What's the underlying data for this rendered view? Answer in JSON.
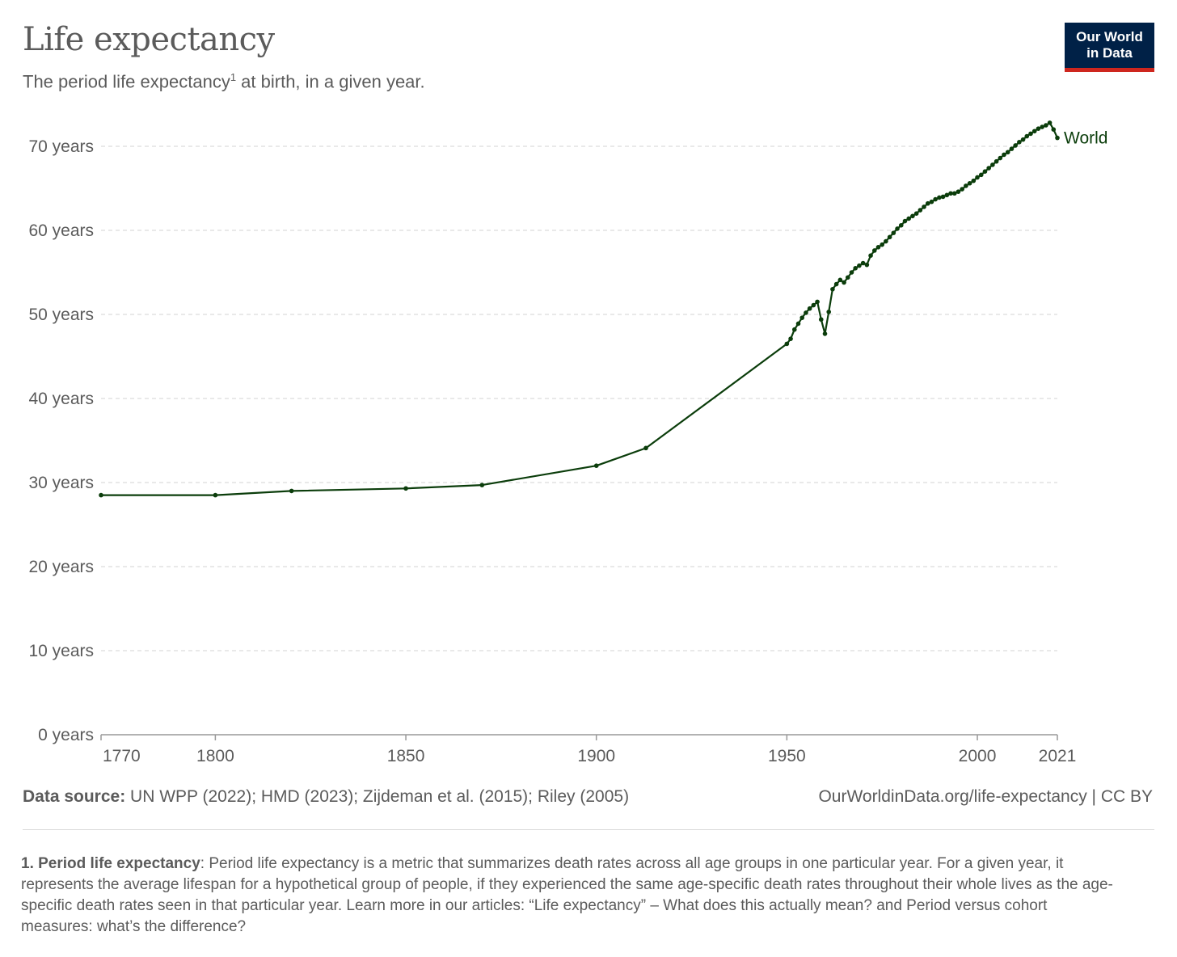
{
  "header": {
    "title": "Life expectancy",
    "subtitle": "The period life expectancy",
    "subtitle_sup": "1",
    "subtitle_rest": " at birth, in a given year."
  },
  "logo": {
    "line1": "Our World",
    "line2": "in Data",
    "bg_color": "#002147",
    "accent_color": "#ce261e"
  },
  "chart_data": {
    "type": "line",
    "title": "Life expectancy",
    "subtitle": "The period life expectancy¹ at birth, in a given year.",
    "xlim": [
      1770,
      2021
    ],
    "ylim": [
      0,
      75
    ],
    "x_ticks": [
      1770,
      1800,
      1850,
      1900,
      1950,
      2000,
      2021
    ],
    "y_ticks": [
      0,
      10,
      20,
      30,
      40,
      50,
      60,
      70
    ],
    "y_tick_labels": [
      "0 years",
      "10 years",
      "20 years",
      "30 years",
      "40 years",
      "50 years",
      "60 years",
      "70 years"
    ],
    "grid": "horizontal dashed",
    "series": [
      {
        "name": "World",
        "color": "#0b3d0b",
        "points": [
          [
            1770,
            28.5
          ],
          [
            1800,
            28.5
          ],
          [
            1820,
            29.0
          ],
          [
            1850,
            29.3
          ],
          [
            1870,
            29.7
          ],
          [
            1900,
            32.0
          ],
          [
            1913,
            34.1
          ],
          [
            1950,
            46.5
          ],
          [
            1951,
            47.1
          ],
          [
            1952,
            48.2
          ],
          [
            1953,
            48.9
          ],
          [
            1954,
            49.6
          ],
          [
            1955,
            50.2
          ],
          [
            1956,
            50.7
          ],
          [
            1957,
            51.1
          ],
          [
            1958,
            51.5
          ],
          [
            1959,
            49.4
          ],
          [
            1960,
            47.7
          ],
          [
            1961,
            50.3
          ],
          [
            1962,
            53.0
          ],
          [
            1963,
            53.6
          ],
          [
            1964,
            54.1
          ],
          [
            1965,
            53.8
          ],
          [
            1966,
            54.4
          ],
          [
            1967,
            55.0
          ],
          [
            1968,
            55.5
          ],
          [
            1969,
            55.8
          ],
          [
            1970,
            56.1
          ],
          [
            1971,
            55.9
          ],
          [
            1972,
            57.0
          ],
          [
            1973,
            57.6
          ],
          [
            1974,
            58.0
          ],
          [
            1975,
            58.3
          ],
          [
            1976,
            58.7
          ],
          [
            1977,
            59.2
          ],
          [
            1978,
            59.7
          ],
          [
            1979,
            60.2
          ],
          [
            1980,
            60.6
          ],
          [
            1981,
            61.1
          ],
          [
            1982,
            61.4
          ],
          [
            1983,
            61.7
          ],
          [
            1984,
            62.0
          ],
          [
            1985,
            62.4
          ],
          [
            1986,
            62.8
          ],
          [
            1987,
            63.2
          ],
          [
            1988,
            63.4
          ],
          [
            1989,
            63.7
          ],
          [
            1990,
            63.9
          ],
          [
            1991,
            64.0
          ],
          [
            1992,
            64.2
          ],
          [
            1993,
            64.4
          ],
          [
            1994,
            64.4
          ],
          [
            1995,
            64.6
          ],
          [
            1996,
            64.9
          ],
          [
            1997,
            65.3
          ],
          [
            1998,
            65.6
          ],
          [
            1999,
            65.9
          ],
          [
            2000,
            66.3
          ],
          [
            2001,
            66.6
          ],
          [
            2002,
            67.0
          ],
          [
            2003,
            67.4
          ],
          [
            2004,
            67.8
          ],
          [
            2005,
            68.2
          ],
          [
            2006,
            68.6
          ],
          [
            2007,
            69.0
          ],
          [
            2008,
            69.3
          ],
          [
            2009,
            69.7
          ],
          [
            2010,
            70.1
          ],
          [
            2011,
            70.5
          ],
          [
            2012,
            70.8
          ],
          [
            2013,
            71.2
          ],
          [
            2014,
            71.5
          ],
          [
            2015,
            71.8
          ],
          [
            2016,
            72.1
          ],
          [
            2017,
            72.3
          ],
          [
            2018,
            72.5
          ],
          [
            2019,
            72.8
          ],
          [
            2020,
            72.0
          ],
          [
            2021,
            71.0
          ]
        ]
      }
    ]
  },
  "footer": {
    "source_label": "Data source:",
    "source_text": " UN WPP (2022); HMD (2023); Zijdeman et al. (2015); Riley (2005)",
    "url": "OurWorldinData.org/life-expectancy | CC BY"
  },
  "note": {
    "label": "1. Period life expectancy",
    "text": ": Period life expectancy is a metric that summarizes death rates across all age groups in one particular year. For a given year, it represents the average lifespan for a hypothetical group of people, if they experienced the same age-specific death rates throughout their whole lives as the age-specific death rates seen in that particular year. Learn more in our articles: “Life expectancy” – What does this actually mean? and Period versus cohort measures: what’s the difference?"
  }
}
